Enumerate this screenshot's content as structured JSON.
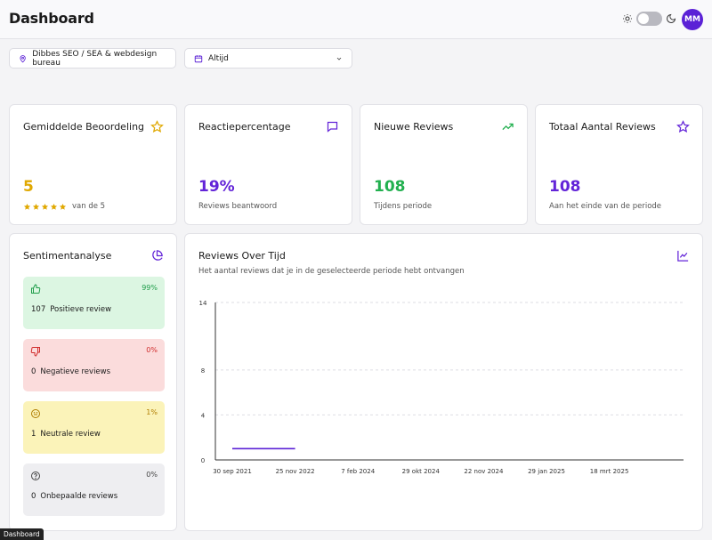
{
  "header": {
    "title": "Dashboard",
    "avatar_initials": "MM"
  },
  "filters": {
    "location": "Dibbes SEO / SEA & webdesign bureau",
    "period": "Altijd"
  },
  "stats": [
    {
      "title": "Gemiddelde Beoordeling",
      "value": "5",
      "sub": "van de 5",
      "color": "#e0a800",
      "icon": "star-icon"
    },
    {
      "title": "Reactiepercentage",
      "value": "19%",
      "sub": "Reviews beantwoord",
      "color": "#6324d8",
      "icon": "message-icon"
    },
    {
      "title": "Nieuwe Reviews",
      "value": "108",
      "sub": "Tijdens periode",
      "color": "#22b04f",
      "icon": "trending-up-icon"
    },
    {
      "title": "Totaal Aantal Reviews",
      "value": "108",
      "sub": "Aan het einde van de periode",
      "color": "#6324d8",
      "icon": "star-outline-icon"
    }
  ],
  "rating_stars": 5,
  "sentiment": {
    "title": "Sentimentanalyse",
    "items": [
      {
        "count": "107",
        "label": "Positieve review",
        "pct": "99%",
        "bg": "#dcf6e2",
        "color": "#1f9d4a",
        "icon": "thumbs-up-icon"
      },
      {
        "count": "0",
        "label": "Negatieve reviews",
        "pct": "0%",
        "bg": "#fbdcdc",
        "color": "#d12d2d",
        "icon": "thumbs-down-icon"
      },
      {
        "count": "1",
        "label": "Neutrale review",
        "pct": "1%",
        "bg": "#fbf3b9",
        "color": "#b07d00",
        "icon": "neutral-face-icon"
      },
      {
        "count": "0",
        "label": "Onbepaalde reviews",
        "pct": "0%",
        "bg": "#eeeef1",
        "color": "#444444",
        "icon": "question-icon"
      }
    ]
  },
  "chart_panel": {
    "title": "Reviews Over Tijd",
    "subtitle": "Het aantal reviews dat je in de geselecteerde periode hebt ontvangen"
  },
  "chart_data": {
    "type": "line",
    "title": "Reviews Over Tijd",
    "x": [
      "2021-09-30",
      "2022-11-25"
    ],
    "y_ticks": [
      0,
      4,
      8,
      14
    ],
    "x_tick_labels": [
      "30 sep 2021",
      "25 nov 2022",
      "7 feb 2024",
      "29 okt 2024",
      "22 nov 2024",
      "29 jan 2025",
      "18 mrt 2025"
    ],
    "series": [
      {
        "values": [
          1,
          1
        ],
        "color": "#5b21d6"
      }
    ],
    "ylim": [
      0,
      14
    ],
    "grid": true
  },
  "tooltip": "Dashboard"
}
